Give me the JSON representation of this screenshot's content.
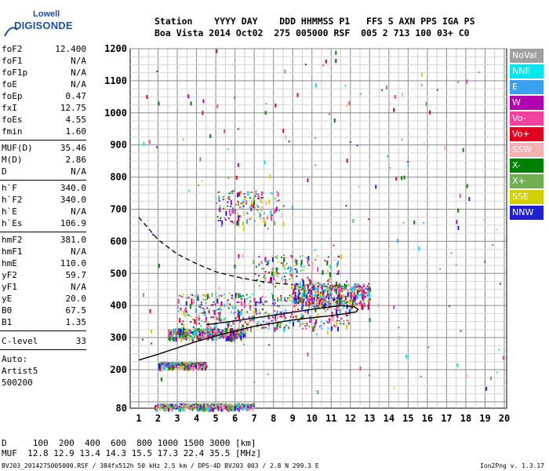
{
  "logo": {
    "top": "Lowell",
    "bottom": "DIGISONDE"
  },
  "header": {
    "line1": "Station    YYYY DAY    DDD HHMMSS P1   FFS S AXN PPS IGA PS",
    "line2": "Boa Vista 2014 Oct02  275 005000 RSF  005 2 713 100 03+ C0"
  },
  "params": {
    "group1": [
      {
        "k": "foF2",
        "v": "12.400"
      },
      {
        "k": "foF1",
        "v": "N/A"
      },
      {
        "k": "foF1p",
        "v": "N/A"
      },
      {
        "k": "foE",
        "v": "N/A"
      },
      {
        "k": "foEp",
        "v": "0.47"
      },
      {
        "k": "fxI",
        "v": "12.75"
      },
      {
        "k": "foEs",
        "v": "4.55"
      },
      {
        "k": "fmin",
        "v": "1.60"
      }
    ],
    "group2": [
      {
        "k": "MUF(D)",
        "v": "35.46"
      },
      {
        "k": "M(D)",
        "v": "2.86"
      },
      {
        "k": "D",
        "v": "N/A"
      }
    ],
    "group3": [
      {
        "k": "h`F",
        "v": "340.0"
      },
      {
        "k": "h`F2",
        "v": "340.0"
      },
      {
        "k": "h`E",
        "v": "N/A"
      },
      {
        "k": "h`Es",
        "v": "106.9"
      }
    ],
    "group4": [
      {
        "k": "hmF2",
        "v": "381.0"
      },
      {
        "k": "hmF1",
        "v": "N/A"
      },
      {
        "k": "hmE",
        "v": "110.0"
      },
      {
        "k": "yF2",
        "v": "59.7"
      },
      {
        "k": "yF1",
        "v": "N/A"
      },
      {
        "k": "yE",
        "v": "20.0"
      },
      {
        "k": "B0",
        "v": "67.5"
      },
      {
        "k": "B1",
        "v": "1.35"
      }
    ],
    "clevel": {
      "k": "C-level",
      "v": "33"
    },
    "auto": [
      "Auto:",
      "Artist5",
      "500200"
    ]
  },
  "legend": [
    {
      "label": "NoVal",
      "color": "#a0a0a0"
    },
    {
      "label": "NNE",
      "color": "#00e5ee"
    },
    {
      "label": "E",
      "color": "#3ca0f0"
    },
    {
      "label": "W",
      "color": "#b000b0"
    },
    {
      "label": "Vo-",
      "color": "#f040a0"
    },
    {
      "label": "Vo+",
      "color": "#e00020"
    },
    {
      "label": "SSW",
      "color": "#f5b0b0"
    },
    {
      "label": "X-",
      "color": "#008000"
    },
    {
      "label": "X+",
      "color": "#70b050"
    },
    {
      "label": "SSE",
      "color": "#d0d000"
    },
    {
      "label": "NNW",
      "color": "#2020d0"
    }
  ],
  "bottom": {
    "line1": "D     100  200  400  600  800 1000 1500 3000 [km]",
    "line2": "MUF  12.8 12.9 13.4 14.3 15.5 17.3 22.4 35.5 [MHz]"
  },
  "footer": {
    "left": "BVJ03_2014275005000.RSF / 384fx512h 50 kHz 2.5 km / DPS-4D BVJ03 003 / 2.8 N 299.3 E",
    "right": "Ion2Png v. 1.3.17"
  },
  "chart_data": {
    "type": "scatter",
    "x_ticks": [
      "1",
      "2",
      "3",
      "4",
      "5",
      "6",
      "7",
      "8",
      "9",
      "10",
      "11",
      "12",
      "13",
      "14",
      "15",
      "16",
      "17",
      "18",
      "19",
      "20"
    ],
    "y_ticks": [
      "80",
      "200",
      "300",
      "400",
      "500",
      "600",
      "700",
      "800",
      "900",
      "1000",
      "1100",
      "1200"
    ],
    "xlim": [
      1,
      20
    ],
    "ylim": [
      80,
      1200
    ],
    "xlabel": "",
    "ylabel": "",
    "grid": true,
    "clusters": [
      {
        "x": [
          1.8,
          7.0
        ],
        "y": [
          82,
          96
        ],
        "density": "high"
      },
      {
        "x": [
          2.0,
          4.5
        ],
        "y": [
          210,
          225
        ],
        "density": "high"
      },
      {
        "x": [
          2.5,
          6.5
        ],
        "y": [
          300,
          330
        ],
        "density": "high"
      },
      {
        "x": [
          3.0,
          12.0
        ],
        "y": [
          330,
          440
        ],
        "density": "high"
      },
      {
        "x": [
          9.0,
          13.0
        ],
        "y": [
          400,
          470
        ],
        "density": "high"
      },
      {
        "x": [
          5.0,
          8.5
        ],
        "y": [
          660,
          760
        ],
        "density": "medium"
      },
      {
        "x": [
          7.0,
          11.5
        ],
        "y": [
          460,
          560
        ],
        "density": "medium"
      }
    ],
    "profile_curve": {
      "x": [
        1.0,
        2.0,
        3.0,
        4.0,
        5.0,
        6.0,
        7.0,
        8.0,
        9.0,
        10.0,
        11.0,
        11.8,
        12.3,
        12.4,
        12.2,
        11.5,
        10.0,
        8.0,
        6.0,
        4.5
      ],
      "y": [
        230,
        248,
        268,
        288,
        305,
        320,
        335,
        345,
        355,
        362,
        368,
        375,
        380,
        388,
        396,
        400,
        388,
        370,
        352,
        340
      ]
    },
    "extrapolation_curve": {
      "x": [
        1.0,
        1.5,
        2.0,
        3.0,
        4.0,
        5.0,
        6.0,
        7.0,
        8.0,
        9.0
      ],
      "y": [
        675,
        640,
        605,
        560,
        530,
        505,
        490,
        478,
        470,
        465
      ]
    }
  }
}
